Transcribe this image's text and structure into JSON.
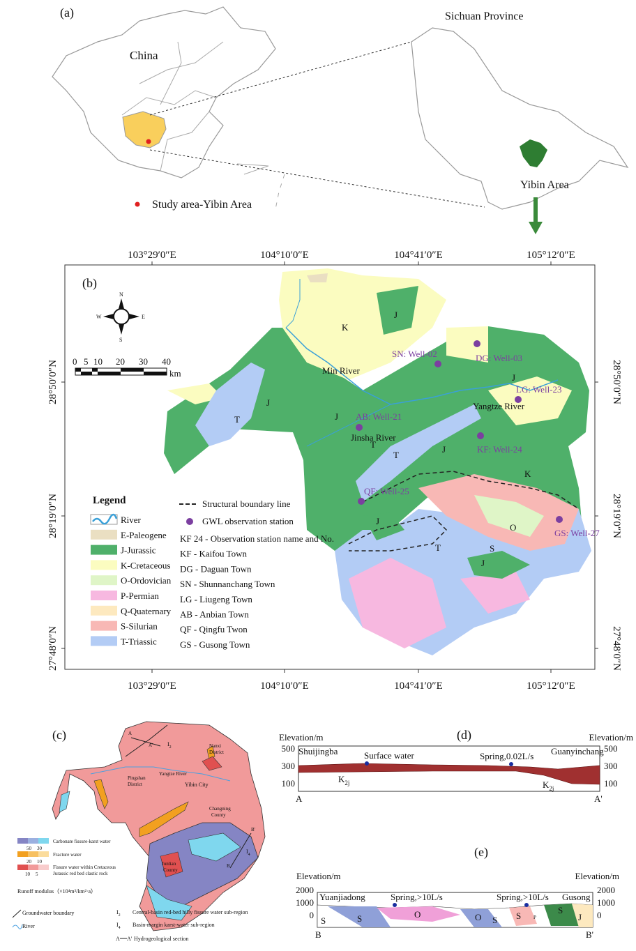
{
  "panel_a": {
    "label": "(a)",
    "china": "China",
    "province": "Sichuan Province",
    "study_area": "Study area-Yibin Area",
    "yibin": "Yibin Area"
  },
  "panel_b": {
    "label": "(b)",
    "longitudes": [
      "103°29′0″E",
      "104°10′0″E",
      "104°41′0″E",
      "105°12′0″E"
    ],
    "latitudes": [
      "28°50′0″N",
      "28°19′0″N",
      "27°48′0″N"
    ],
    "compass": {
      "n": "N",
      "s": "S",
      "w": "W",
      "e": "E"
    },
    "scale": {
      "ticks": [
        "0",
        "5",
        "10",
        "20",
        "30",
        "40"
      ],
      "unit": "km"
    },
    "unit_labels": [
      "K",
      "J",
      "J",
      "J",
      "T",
      "T",
      "T",
      "J",
      "J",
      "K",
      "J",
      "O",
      "S",
      "T",
      "J"
    ],
    "rivers": [
      "Min River",
      "Yangtze River",
      "Jinsha River"
    ],
    "stations": [
      "SN: Well-02",
      "DG: Well-03",
      "LG: Well-23",
      "AB: Well-21",
      "KF: Well-24",
      "QF: Well-25",
      "GS: Well-27"
    ],
    "station_color": "#7b3fa0",
    "legend": {
      "title": "Legend",
      "items": [
        {
          "label": "River",
          "color": "#3aa0d8"
        },
        {
          "label": "E-Paleogene",
          "color": "#eadfc2"
        },
        {
          "label": "J-Jurassic",
          "color": "#4fb06a"
        },
        {
          "label": "K-Cretaceous",
          "color": "#fbfcc0"
        },
        {
          "label": "O-Ordovician",
          "color": "#dff5c7"
        },
        {
          "label": "P-Permian",
          "color": "#f7b8e0"
        },
        {
          "label": "Q-Quaternary",
          "color": "#fde9bf"
        },
        {
          "label": "S-Silurian",
          "color": "#f8b8b5"
        },
        {
          "label": "T-Triassic",
          "color": "#b3ccf5"
        }
      ]
    },
    "notes": {
      "boundary": "Structural boundary  line",
      "station": "GWL observation station",
      "abbreviations": [
        "KF 24 - Observation station name and No.",
        "KF - Kaifou Town",
        "DG - Daguan Town",
        "SN - Shunnanchang Town",
        "LG - Liugeng Town",
        "AB - Anbian Town",
        "QF - Qingfu Twon",
        "GS - Gusong Town"
      ]
    }
  },
  "panel_c": {
    "label": "(c)",
    "a": "A",
    "a_prime": "A'",
    "i2": {
      "main": "I",
      "sub": "2"
    },
    "i4": {
      "main": "I",
      "sub": "4"
    },
    "b": "B",
    "b_prime": "B'",
    "places": {
      "nanxi": [
        "Nanxi",
        "District"
      ],
      "pingshan": [
        "Pingshan",
        "District"
      ],
      "river": "Yangtze River",
      "city": "Yibin City",
      "changning": [
        "Changning",
        "County"
      ],
      "junlian": [
        "Junlian",
        "County"
      ]
    },
    "legend": {
      "carbonate": "Carbonate fissure-karst water",
      "carbonate_values": [
        "50",
        "30"
      ],
      "fracture": "Fracture water",
      "fracture_values": [
        "20",
        "10"
      ],
      "fissure": [
        "Fissure water within Cretaceous",
        "Jurassic red bed clastic rock"
      ],
      "fissure_values": [
        "10",
        "5"
      ],
      "runoff": "Runoff modulus（×10⁴m³/km²·a）",
      "boundary": "Groundwater boundary",
      "river": "River",
      "i2_text": "Central-basin red-bed hilly fissure water sub-region",
      "i4_text": "Basin-margin karst-water sub-region",
      "section_a": "A",
      "section_b": "A'",
      "section_text": "Hydrogeological section"
    }
  },
  "panel_d": {
    "label": "(d)",
    "axis_title": "Elevation/m",
    "ticks": [
      "500",
      "300",
      "100"
    ],
    "start": "Shuijingba",
    "surface": "Surface water",
    "spring": "Spring,0.02L/s",
    "end": "Guanyinchang",
    "formation": {
      "main": "K",
      "sub": "2j"
    },
    "a": "A",
    "a_prime": "A'"
  },
  "panel_e": {
    "label": "(e)",
    "axis_title": "Elevation/m",
    "ticks": [
      "2000",
      "1000",
      "0"
    ],
    "start": "Yuanjiadong",
    "spring": "Spring,>10L/s",
    "end": "Gusong",
    "units": [
      "S",
      "S",
      "O",
      "O",
      "S",
      "S",
      "P",
      "S",
      "J"
    ],
    "b": "B",
    "b_prime": "B'"
  }
}
